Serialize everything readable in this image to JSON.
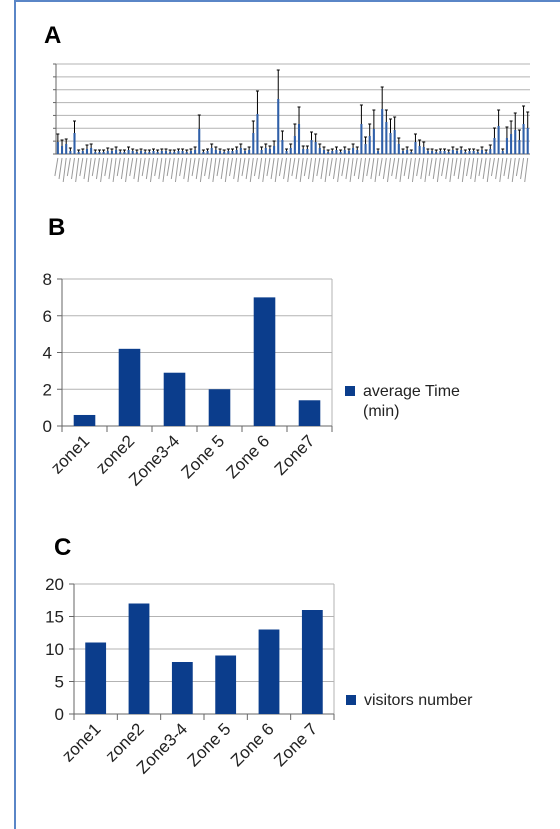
{
  "panels": {
    "a_label": "A",
    "b_label": "B",
    "c_label": "C"
  },
  "colors": {
    "bar": "#0b3d8c",
    "grid": "#b3b3b3",
    "border": "#5a86c7",
    "axis": "#666666"
  },
  "chart_data": [
    {
      "id": "A",
      "type": "bar",
      "error_bars": true,
      "grid": true,
      "values": [
        1.2,
        0.8,
        1.0,
        0.3,
        2.1,
        0.2,
        0.3,
        0.5,
        0.6,
        0.2,
        0.2,
        0.2,
        0.3,
        0.3,
        0.4,
        0.2,
        0.2,
        0.4,
        0.3,
        0.2,
        0.3,
        0.2,
        0.2,
        0.3,
        0.2,
        0.3,
        0.3,
        0.2,
        0.2,
        0.3,
        0.3,
        0.2,
        0.3,
        0.4,
        2.5,
        0.2,
        0.3,
        0.6,
        0.4,
        0.3,
        0.2,
        0.3,
        0.3,
        0.4,
        0.6,
        0.3,
        0.4,
        2.1,
        4.0,
        0.4,
        0.6,
        0.5,
        0.8,
        5.5,
        1.4,
        0.3,
        0.6,
        1.8,
        3.0,
        0.5,
        0.5,
        1.4,
        1.2,
        0.6,
        0.4,
        0.2,
        0.3,
        0.4,
        0.2,
        0.4,
        0.3,
        0.6,
        0.4,
        3.0,
        1.0,
        1.8,
        2.5,
        0.3,
        4.5,
        3.2,
        2.1,
        2.4,
        1.0,
        0.3,
        0.4,
        0.2,
        1.2,
        0.8,
        0.7,
        0.3,
        0.3,
        0.2,
        0.3,
        0.3,
        0.2,
        0.4,
        0.3,
        0.4,
        0.2,
        0.3,
        0.3,
        0.2,
        0.4,
        0.2,
        0.5,
        1.6,
        2.8,
        0.3,
        1.6,
        2.0,
        2.4,
        1.4,
        3.0,
        2.6
      ],
      "errors": [
        0.8,
        0.6,
        0.5,
        0.3,
        1.2,
        0.2,
        0.2,
        0.4,
        0.4,
        0.2,
        0.2,
        0.2,
        0.3,
        0.2,
        0.3,
        0.2,
        0.2,
        0.3,
        0.2,
        0.2,
        0.2,
        0.2,
        0.2,
        0.2,
        0.2,
        0.2,
        0.2,
        0.2,
        0.2,
        0.2,
        0.2,
        0.2,
        0.2,
        0.3,
        1.4,
        0.2,
        0.2,
        0.4,
        0.3,
        0.2,
        0.2,
        0.2,
        0.2,
        0.3,
        0.4,
        0.2,
        0.3,
        1.2,
        2.3,
        0.3,
        0.4,
        0.3,
        0.5,
        2.9,
        0.9,
        0.2,
        0.4,
        1.2,
        1.7,
        0.3,
        0.3,
        0.8,
        0.8,
        0.4,
        0.3,
        0.2,
        0.2,
        0.3,
        0.2,
        0.3,
        0.2,
        0.4,
        0.3,
        1.9,
        0.7,
        1.2,
        1.9,
        0.2,
        2.2,
        1.2,
        1.4,
        1.3,
        0.6,
        0.2,
        0.3,
        0.2,
        0.8,
        0.6,
        0.5,
        0.2,
        0.2,
        0.2,
        0.2,
        0.2,
        0.2,
        0.3,
        0.2,
        0.3,
        0.2,
        0.2,
        0.2,
        0.2,
        0.3,
        0.2,
        0.4,
        1.0,
        1.6,
        0.2,
        1.1,
        1.3,
        1.7,
        1.0,
        1.8,
        1.6
      ],
      "ylim": [
        0,
        9
      ]
    },
    {
      "id": "B",
      "type": "bar",
      "categories": [
        "zone1",
        "zone2",
        "Zone3-4",
        "Zone 5",
        "Zone 6",
        "Zone7"
      ],
      "series": [
        {
          "name": "average Time (min)",
          "values": [
            0.6,
            4.2,
            2.9,
            2.0,
            7.0,
            1.4
          ]
        }
      ],
      "ylim": [
        0,
        8
      ],
      "yticks": [
        "0",
        "2",
        "4",
        "6",
        "8"
      ],
      "grid": true,
      "legend_position": "right"
    },
    {
      "id": "C",
      "type": "bar",
      "categories": [
        "zone1",
        "zone2",
        "Zone3-4",
        "Zone 5",
        "Zone 6",
        "Zone 7"
      ],
      "series": [
        {
          "name": "visitors number",
          "values": [
            11,
            17,
            8,
            9,
            13,
            16
          ]
        }
      ],
      "ylim": [
        0,
        20
      ],
      "yticks": [
        "0",
        "5",
        "10",
        "15",
        "20"
      ],
      "grid": true,
      "legend_position": "right"
    }
  ],
  "legend": {
    "b_line1": "average Time",
    "b_line2": "(min)",
    "c_line1": "visitors number"
  }
}
